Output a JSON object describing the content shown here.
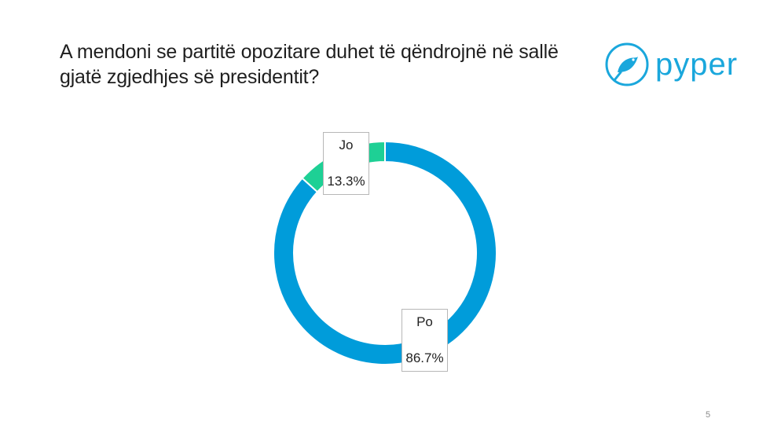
{
  "title": "A mendoni se partitë opozitare duhet të qëndrojnë në sallë gjatë zgjedhjes së presidentit?",
  "logo": {
    "text": "pyper",
    "icon": "bird-icon",
    "color": "#1aa7dc"
  },
  "page_number": "5",
  "chart_data": {
    "type": "pie",
    "variant": "donut",
    "title": "A mendoni se partitë opozitare duhet të qëndrojnë në sallë gjatë zgjedhjes së presidentit?",
    "slices": [
      {
        "label": "Po",
        "value": 86.7,
        "display": "86.7%",
        "color": "#009cda"
      },
      {
        "label": "Jo",
        "value": 13.3,
        "display": "13.3%",
        "color": "#1ed095"
      }
    ]
  }
}
